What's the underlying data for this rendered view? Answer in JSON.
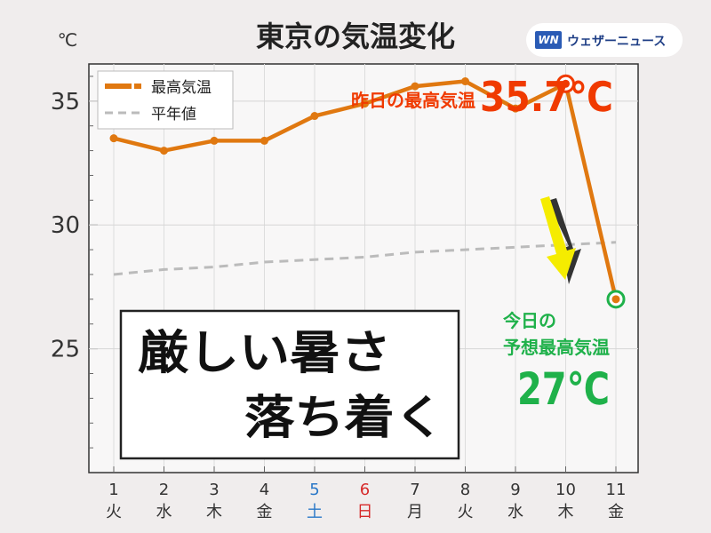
{
  "header": {
    "title": "東京の気温変化",
    "unit": "℃",
    "brand": "ウェザーニュース",
    "brand_mark": "WN"
  },
  "legend": {
    "max_label": "最高気温",
    "normal_label": "平年値"
  },
  "annotations": {
    "yesterday_label": "昨日の最高気温",
    "yesterday_value": "35.7℃",
    "today_label_1": "今日の",
    "today_label_2": "予想最高気温",
    "today_value": "27℃",
    "headline_1": "厳しい暑さ",
    "headline_2": "落ち着く"
  },
  "colors": {
    "max_line": "#e07810",
    "normal_line": "#bbbbbb",
    "yesterday_text": "#f03a00",
    "today_text": "#1fb14a",
    "arrow": "#f5ec00",
    "saturday": "#2a78c8",
    "sunday": "#d62a2a",
    "plot_bg": "#f8f7f7"
  },
  "chart_data": {
    "type": "line",
    "title": "東京の気温変化",
    "ylabel": "℃",
    "ylim": [
      20,
      36.5
    ],
    "yticks": [
      25,
      30,
      35
    ],
    "categories": [
      "1",
      "2",
      "3",
      "4",
      "5",
      "6",
      "7",
      "8",
      "9",
      "10",
      "11"
    ],
    "weekdays": [
      "火",
      "水",
      "木",
      "金",
      "土",
      "日",
      "月",
      "火",
      "水",
      "木",
      "金"
    ],
    "weekday_colors": [
      null,
      null,
      null,
      null,
      "saturday",
      "sunday",
      null,
      null,
      null,
      null,
      null
    ],
    "grid": true,
    "legend_position": "top-left",
    "series": [
      {
        "name": "最高気温",
        "values": [
          33.5,
          33.0,
          33.4,
          33.4,
          34.4,
          34.9,
          35.6,
          35.8,
          34.7,
          35.7,
          27.0
        ]
      },
      {
        "name": "平年値",
        "values": [
          28.0,
          28.2,
          28.3,
          28.5,
          28.6,
          28.7,
          28.9,
          29.0,
          29.1,
          29.2,
          29.3
        ]
      }
    ]
  }
}
